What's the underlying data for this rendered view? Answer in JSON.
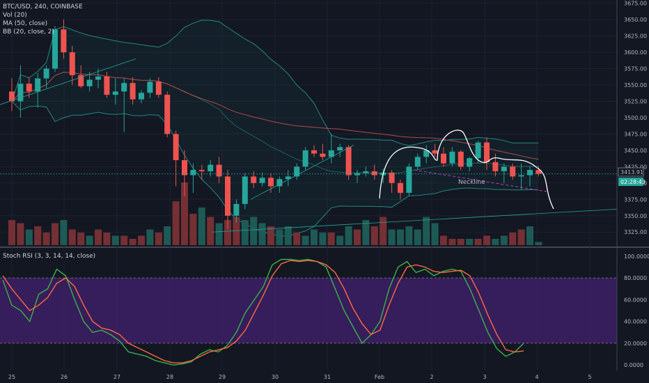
{
  "header": {
    "symbol_line": "BTC/USD, 240, COINBASE",
    "indicators": [
      "Vol (20)",
      "MA (50, close)",
      "BB (20, close, 2)"
    ]
  },
  "rsi_label": "Stoch RSI (3, 3, 14, 14, close)",
  "price_tag": "3413.91",
  "countdown_tag": "02:28:43",
  "annotation": "Neckline",
  "colors": {
    "background": "#131722",
    "up": "#26a69a",
    "down": "#ef5350",
    "bb": "#26a69a",
    "ma": "#b24a4a",
    "k_line": "#3bb34a",
    "d_line": "#ff6a3d",
    "rsi_band": "#3d1f66",
    "neckline": "#c040c0",
    "drawing": "#ffffff"
  },
  "chart_data": [
    {
      "type": "candlestick",
      "title": "BTC/USD, 240, COINBASE",
      "x_ticks": [
        "25",
        "26",
        "27",
        "28",
        "29",
        "30",
        "31",
        "Feb",
        "2",
        "3",
        "4",
        "5"
      ],
      "y_ticks": [
        "3675.00",
        "3650.00",
        "3625.00",
        "3600.00",
        "3575.00",
        "3550.00",
        "3525.00",
        "3500.00",
        "3475.00",
        "3450.00",
        "3425.00",
        "3400.00",
        "3375.00",
        "3350.00",
        "3325.00"
      ],
      "ylim": [
        3305,
        3680
      ],
      "last_price": 3413.91,
      "candles": [
        [
          3540,
          3560,
          3510,
          3525
        ],
        [
          3525,
          3580,
          3500,
          3552
        ],
        [
          3552,
          3562,
          3530,
          3540
        ],
        [
          3540,
          3568,
          3515,
          3560
        ],
        [
          3560,
          3580,
          3545,
          3575
        ],
        [
          3575,
          3640,
          3570,
          3635
        ],
        [
          3635,
          3650,
          3590,
          3600
        ],
        [
          3600,
          3610,
          3550,
          3565
        ],
        [
          3565,
          3580,
          3545,
          3548
        ],
        [
          3548,
          3570,
          3540,
          3558
        ],
        [
          3558,
          3575,
          3545,
          3563
        ],
        [
          3563,
          3570,
          3530,
          3535
        ],
        [
          3535,
          3560,
          3520,
          3540
        ],
        [
          3540,
          3560,
          3478,
          3553
        ],
        [
          3553,
          3562,
          3520,
          3528
        ],
        [
          3528,
          3542,
          3522,
          3538
        ],
        [
          3538,
          3560,
          3530,
          3555
        ],
        [
          3555,
          3562,
          3530,
          3535
        ],
        [
          3535,
          3540,
          3470,
          3475
        ],
        [
          3475,
          3480,
          3395,
          3435
        ],
        [
          3435,
          3450,
          3380,
          3412
        ],
        [
          3412,
          3430,
          3385,
          3420
        ],
        [
          3420,
          3428,
          3405,
          3418
        ],
        [
          3418,
          3435,
          3410,
          3428
        ],
        [
          3428,
          3440,
          3400,
          3410
        ],
        [
          3410,
          3420,
          3330,
          3350
        ],
        [
          3350,
          3375,
          3340,
          3368
        ],
        [
          3368,
          3415,
          3360,
          3410
        ],
        [
          3410,
          3418,
          3392,
          3400
        ],
        [
          3400,
          3416,
          3395,
          3408
        ],
        [
          3408,
          3415,
          3385,
          3395
        ],
        [
          3395,
          3410,
          3385,
          3406
        ],
        [
          3406,
          3420,
          3395,
          3410
        ],
        [
          3410,
          3430,
          3405,
          3425
        ],
        [
          3425,
          3455,
          3420,
          3450
        ],
        [
          3450,
          3458,
          3440,
          3445
        ],
        [
          3445,
          3460,
          3435,
          3440
        ],
        [
          3440,
          3475,
          3430,
          3450
        ],
        [
          3450,
          3460,
          3440,
          3455
        ],
        [
          3455,
          3458,
          3405,
          3412
        ],
        [
          3412,
          3420,
          3400,
          3415
        ],
        [
          3415,
          3425,
          3410,
          3418
        ],
        [
          3418,
          3428,
          3405,
          3412
        ],
        [
          3412,
          3422,
          3400,
          3416
        ],
        [
          3416,
          3420,
          3385,
          3400
        ],
        [
          3400,
          3405,
          3375,
          3385
        ],
        [
          3385,
          3430,
          3380,
          3425
        ],
        [
          3425,
          3445,
          3420,
          3440
        ],
        [
          3440,
          3458,
          3430,
          3450
        ],
        [
          3450,
          3460,
          3440,
          3445
        ],
        [
          3445,
          3455,
          3425,
          3430
        ],
        [
          3430,
          3455,
          3425,
          3448
        ],
        [
          3448,
          3450,
          3420,
          3425
        ],
        [
          3425,
          3440,
          3418,
          3438
        ],
        [
          3438,
          3465,
          3430,
          3462
        ],
        [
          3462,
          3470,
          3420,
          3432
        ],
        [
          3432,
          3445,
          3410,
          3418
        ],
        [
          3418,
          3430,
          3400,
          3425
        ],
        [
          3425,
          3430,
          3405,
          3410
        ],
        [
          3410,
          3430,
          3390,
          3412
        ],
        [
          3412,
          3425,
          3395,
          3420
        ],
        [
          3420,
          3426,
          3410,
          3414
        ]
      ],
      "volume": [
        [
          "d",
          8
        ],
        [
          "d",
          7
        ],
        [
          "u",
          5
        ],
        [
          "d",
          6
        ],
        [
          "d",
          4
        ],
        [
          "d",
          7
        ],
        [
          "u",
          8
        ],
        [
          "d",
          5
        ],
        [
          "d",
          4
        ],
        [
          "u",
          3
        ],
        [
          "d",
          5
        ],
        [
          "d",
          4
        ],
        [
          "u",
          3
        ],
        [
          "d",
          3
        ],
        [
          "d",
          2
        ],
        [
          "d",
          3
        ],
        [
          "u",
          5
        ],
        [
          "d",
          4
        ],
        [
          "u",
          6
        ],
        [
          "d",
          14
        ],
        [
          "d",
          20
        ],
        [
          "d",
          10
        ],
        [
          "u",
          12
        ],
        [
          "d",
          9
        ],
        [
          "u",
          7
        ],
        [
          "d",
          8
        ],
        [
          "d",
          9
        ],
        [
          "u",
          8
        ],
        [
          "u",
          9
        ],
        [
          "u",
          7
        ],
        [
          "d",
          6
        ],
        [
          "u",
          5
        ],
        [
          "u",
          6
        ],
        [
          "d",
          4
        ],
        [
          "u",
          3
        ],
        [
          "u",
          5
        ],
        [
          "u",
          4
        ],
        [
          "d",
          4
        ],
        [
          "u",
          3
        ],
        [
          "u",
          6
        ],
        [
          "d",
          5
        ],
        [
          "u",
          8
        ],
        [
          "d",
          6
        ],
        [
          "d",
          9
        ],
        [
          "u",
          5
        ],
        [
          "u",
          5
        ],
        [
          "u",
          6
        ],
        [
          "u",
          5
        ],
        [
          "u",
          9
        ],
        [
          "u",
          7
        ],
        [
          "d",
          3
        ],
        [
          "d",
          2
        ],
        [
          "d",
          2
        ],
        [
          "u",
          2
        ],
        [
          "d",
          2
        ],
        [
          "d",
          3
        ],
        [
          "u",
          2
        ],
        [
          "u",
          3
        ],
        [
          "d",
          4
        ],
        [
          "d",
          5
        ],
        [
          "u",
          6
        ],
        [
          "u",
          1
        ]
      ]
    },
    {
      "type": "line",
      "title": "Stoch RSI (3, 3, 14, 14, close)",
      "y_ticks": [
        "100.0000",
        "80.0000",
        "60.0000",
        "40.0000",
        "20.0000",
        "0.0000"
      ],
      "ylim": [
        -5,
        105
      ],
      "band": [
        20,
        80
      ],
      "series": [
        {
          "key": "k",
          "values": [
            78,
            55,
            50,
            40,
            65,
            70,
            88,
            82,
            60,
            40,
            30,
            32,
            28,
            22,
            12,
            10,
            8,
            4,
            2,
            0,
            1,
            3,
            10,
            14,
            12,
            18,
            30,
            48,
            60,
            72,
            92,
            97,
            97,
            96,
            97,
            95,
            90,
            70,
            50,
            35,
            20,
            28,
            40,
            70,
            90,
            95,
            85,
            88,
            82,
            86,
            88,
            86,
            70,
            50,
            30,
            15,
            8,
            12,
            20
          ]
        },
        {
          "key": "d",
          "values": [
            82,
            70,
            60,
            50,
            55,
            62,
            75,
            80,
            72,
            55,
            40,
            34,
            32,
            28,
            20,
            16,
            12,
            8,
            4,
            2,
            2,
            4,
            8,
            12,
            14,
            16,
            22,
            32,
            48,
            64,
            82,
            93,
            96,
            95,
            96,
            95,
            92,
            85,
            70,
            52,
            38,
            28,
            32,
            55,
            75,
            90,
            92,
            90,
            86,
            85,
            86,
            87,
            82,
            66,
            46,
            28,
            14,
            12,
            13
          ]
        }
      ]
    }
  ]
}
